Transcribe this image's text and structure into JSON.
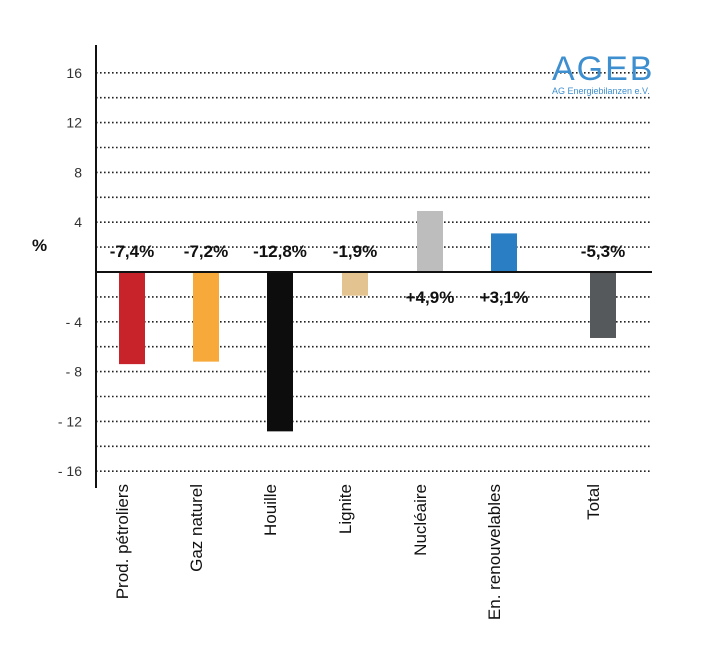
{
  "chart_data": {
    "type": "bar",
    "ylabel": "%",
    "ylim": [
      -16,
      16
    ],
    "yticks": [
      16,
      12,
      8,
      4,
      -4,
      -8,
      -12,
      -16
    ],
    "ytick_labels": [
      "16",
      "12",
      "8",
      "4",
      "- 4",
      "- 8",
      "- 12",
      "- 16"
    ],
    "grid": true,
    "categories": [
      "Prod. pétroliers",
      "Gaz naturel",
      "Houille",
      "Lignite",
      "Nucléaire",
      "En. renouvelables",
      "Total"
    ],
    "values": [
      -7.4,
      -7.2,
      -12.8,
      -1.9,
      4.9,
      3.1,
      -5.3
    ],
    "data_labels": [
      "-7,4%",
      "-7,2%",
      "-12,8%",
      "-1,9%",
      "+4,9%",
      "+3,1%",
      "-5,3%"
    ],
    "colors": [
      "#c8222a",
      "#f7a93a",
      "#0d0d0d",
      "#e3c38f",
      "#bdbdbd",
      "#2a7fc4",
      "#56595c"
    ]
  },
  "logo": {
    "word": "AGEB",
    "sub": "AG Energiebilanzen e.V."
  }
}
